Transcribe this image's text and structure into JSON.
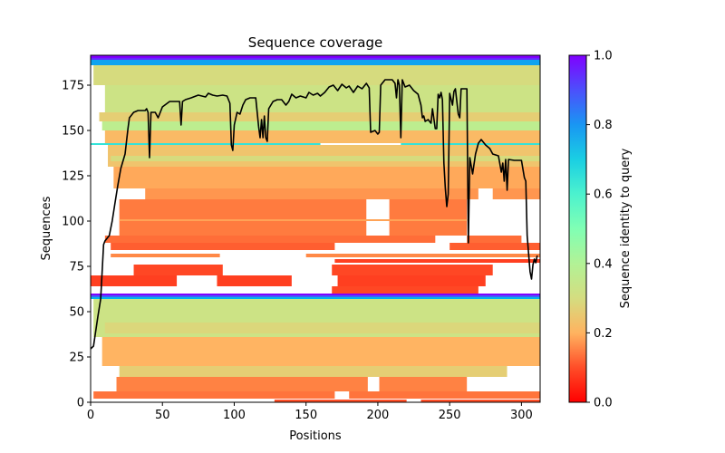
{
  "chart_data": {
    "type": "heatmap",
    "title": "Sequence coverage",
    "xlabel": "Positions",
    "ylabel": "Sequences",
    "xlim": [
      0,
      313
    ],
    "ylim": [
      0,
      191.5
    ],
    "x_ticks": [
      "0",
      "50",
      "100",
      "150",
      "200",
      "250",
      "300"
    ],
    "x_tick_values": [
      0,
      50,
      100,
      150,
      200,
      250,
      300
    ],
    "y_ticks": [
      "0",
      "25",
      "50",
      "75",
      "100",
      "125",
      "150",
      "175"
    ],
    "y_tick_values": [
      0,
      25,
      50,
      75,
      100,
      125,
      150,
      175
    ],
    "colorbar": {
      "label": "Sequence identity to query",
      "colormap": "rainbow_r",
      "range": [
        0.0,
        1.0
      ],
      "ticks": [
        "0.0",
        "0.2",
        "0.4",
        "0.6",
        "0.8",
        "1.0"
      ],
      "tick_values": [
        0.0,
        0.2,
        0.4,
        0.6,
        0.8,
        1.0
      ]
    },
    "line_color": "#000000",
    "coverage_line": {
      "name": "coverage",
      "x": [
        0,
        2,
        5,
        7,
        8,
        9,
        10,
        13,
        15,
        17,
        19,
        21,
        24,
        26,
        27,
        30,
        33,
        38,
        39,
        40,
        41,
        42,
        45,
        47,
        50,
        55,
        62,
        63,
        64,
        66,
        70,
        75,
        80,
        82,
        85,
        88,
        92,
        95,
        97,
        98,
        99,
        100,
        102,
        104,
        106,
        108,
        111,
        115,
        117,
        118,
        119,
        120,
        121,
        122,
        123,
        124,
        127,
        130,
        133,
        136,
        138,
        140,
        143,
        146,
        150,
        152,
        155,
        158,
        160,
        163,
        166,
        169,
        172,
        175,
        178,
        180,
        183,
        186,
        189,
        192,
        194,
        195,
        198,
        200,
        201,
        202,
        205,
        210,
        212,
        213,
        214,
        215,
        216,
        217,
        219,
        222,
        225,
        228,
        230,
        231,
        232,
        233,
        235,
        237,
        238,
        240,
        241,
        242,
        243,
        244,
        245,
        246,
        247,
        248,
        249,
        250,
        252,
        253,
        254,
        256,
        257,
        258,
        262,
        263,
        264,
        266,
        268,
        270,
        272,
        275,
        278,
        280,
        284,
        286,
        287,
        288,
        289,
        290,
        291,
        295,
        298,
        300,
        302,
        303,
        304,
        306,
        307,
        308,
        309,
        310,
        311
      ],
      "y": [
        29.5,
        31,
        47,
        57,
        72,
        87,
        89,
        92,
        100,
        110,
        120,
        129,
        137,
        151,
        157,
        160,
        161,
        161,
        162,
        160,
        135,
        160,
        160,
        157,
        163,
        166,
        166,
        153,
        166,
        167,
        168,
        169.5,
        168.5,
        170.5,
        169.5,
        169,
        169.5,
        169,
        165,
        142,
        139,
        153,
        160,
        159,
        164,
        167,
        168,
        168,
        152,
        146,
        156,
        146,
        158,
        146,
        144,
        162,
        166,
        167,
        167,
        164,
        166,
        170,
        168,
        169,
        168,
        171,
        169.5,
        170.5,
        169,
        171,
        174,
        175,
        172,
        175.5,
        173.5,
        174.5,
        171,
        174.5,
        173,
        176,
        173.5,
        149,
        150,
        148,
        149,
        175,
        178,
        178,
        176,
        168,
        178,
        175,
        146,
        178,
        174,
        175,
        172,
        170,
        164,
        157,
        158,
        155,
        156,
        154,
        162,
        151,
        151,
        170,
        168,
        171,
        167,
        132,
        118,
        108,
        115,
        170.5,
        164,
        171.5,
        173,
        159,
        157,
        173,
        173,
        88,
        135,
        126,
        137,
        143,
        145,
        142,
        140,
        137,
        136,
        127,
        132,
        122,
        134,
        117,
        134,
        133.5,
        133.5,
        133.5,
        124,
        122,
        92,
        72,
        68,
        76,
        79,
        77,
        81
      ]
    },
    "sequence_bands": [
      {
        "rows": [
          190,
          191.5
        ],
        "identity": 1.0,
        "segments": [
          [
            0,
            313
          ]
        ]
      },
      {
        "rows": [
          189,
          190
        ],
        "identity": 0.95,
        "segments": [
          [
            0,
            313
          ]
        ]
      },
      {
        "rows": [
          186,
          189
        ],
        "identity": 0.78,
        "segments": [
          [
            0,
            313
          ]
        ]
      },
      {
        "rows": [
          175,
          186
        ],
        "identity": 0.33,
        "segments": [
          [
            2,
            313
          ]
        ]
      },
      {
        "rows": [
          172,
          173
        ],
        "identity": 0.22,
        "segments": [
          [
            40,
            313
          ]
        ]
      },
      {
        "rows": [
          160,
          175
        ],
        "identity": 0.35,
        "segments": [
          [
            10,
            313
          ]
        ]
      },
      {
        "rows": [
          155,
          160
        ],
        "identity": 0.3,
        "segments": [
          [
            6,
            313
          ]
        ]
      },
      {
        "rows": [
          150,
          155
        ],
        "identity": 0.38,
        "segments": [
          [
            8,
            313
          ]
        ]
      },
      {
        "rows": [
          143,
          150
        ],
        "identity": 0.26,
        "segments": [
          [
            10,
            313
          ]
        ]
      },
      {
        "rows": [
          142,
          143
        ],
        "identity": 0.65,
        "segments": [
          [
            0,
            160
          ],
          [
            216,
            313
          ]
        ]
      },
      {
        "rows": [
          130,
          142
        ],
        "identity": 0.28,
        "segments": [
          [
            12,
            313
          ]
        ]
      },
      {
        "rows": [
          133,
          136
        ],
        "identity": 0.33,
        "segments": [
          [
            14,
            313
          ]
        ]
      },
      {
        "rows": [
          118,
          130
        ],
        "identity": 0.23,
        "segments": [
          [
            16,
            313
          ]
        ]
      },
      {
        "rows": [
          112,
          118
        ],
        "identity": 0.2,
        "segments": [
          [
            38,
            270
          ],
          [
            280,
            313
          ]
        ]
      },
      {
        "rows": [
          92,
          112
        ],
        "identity": 0.16,
        "segments": [
          [
            20,
            192
          ],
          [
            208,
            262
          ]
        ]
      },
      {
        "rows": [
          100,
          101
        ],
        "identity": 0.22,
        "segments": [
          [
            20,
            262
          ]
        ]
      },
      {
        "rows": [
          88,
          92
        ],
        "identity": 0.14,
        "segments": [
          [
            10,
            240
          ],
          [
            262,
            300
          ]
        ]
      },
      {
        "rows": [
          84,
          88
        ],
        "identity": 0.12,
        "segments": [
          [
            14,
            170
          ],
          [
            250,
            313
          ]
        ]
      },
      {
        "rows": [
          80,
          82
        ],
        "identity": 0.18,
        "segments": [
          [
            14,
            90
          ],
          [
            150,
            313
          ]
        ]
      },
      {
        "rows": [
          77,
          79
        ],
        "identity": 0.08,
        "segments": [
          [
            170,
            313
          ]
        ]
      },
      {
        "rows": [
          70,
          76
        ],
        "identity": 0.09,
        "segments": [
          [
            30,
            92
          ],
          [
            168,
            280
          ]
        ]
      },
      {
        "rows": [
          64,
          70
        ],
        "identity": 0.08,
        "segments": [
          [
            0,
            60
          ],
          [
            88,
            140
          ],
          [
            172,
            275
          ]
        ]
      },
      {
        "rows": [
          60,
          64
        ],
        "identity": 0.09,
        "segments": [
          [
            168,
            270
          ]
        ]
      },
      {
        "rows": [
          59,
          60
        ],
        "identity": 1.0,
        "segments": [
          [
            0,
            313
          ]
        ]
      },
      {
        "rows": [
          58,
          59
        ],
        "identity": 0.88,
        "segments": [
          [
            0,
            313
          ]
        ]
      },
      {
        "rows": [
          57,
          58
        ],
        "identity": 0.75,
        "segments": [
          [
            0,
            313
          ]
        ]
      },
      {
        "rows": [
          36,
          57
        ],
        "identity": 0.35,
        "segments": [
          [
            2,
            313
          ]
        ]
      },
      {
        "rows": [
          38,
          44
        ],
        "identity": 0.32,
        "segments": [
          [
            10,
            313
          ]
        ]
      },
      {
        "rows": [
          20,
          36
        ],
        "identity": 0.25,
        "segments": [
          [
            8,
            313
          ]
        ]
      },
      {
        "rows": [
          14,
          20
        ],
        "identity": 0.3,
        "segments": [
          [
            20,
            290
          ]
        ]
      },
      {
        "rows": [
          6,
          14
        ],
        "identity": 0.17,
        "segments": [
          [
            18,
            193
          ],
          [
            201,
            262
          ]
        ]
      },
      {
        "rows": [
          2,
          6
        ],
        "identity": 0.15,
        "segments": [
          [
            2,
            170
          ],
          [
            180,
            313
          ]
        ]
      },
      {
        "rows": [
          0,
          1.5
        ],
        "identity": 0.1,
        "segments": [
          [
            128,
            220
          ],
          [
            230,
            313
          ]
        ]
      }
    ]
  }
}
